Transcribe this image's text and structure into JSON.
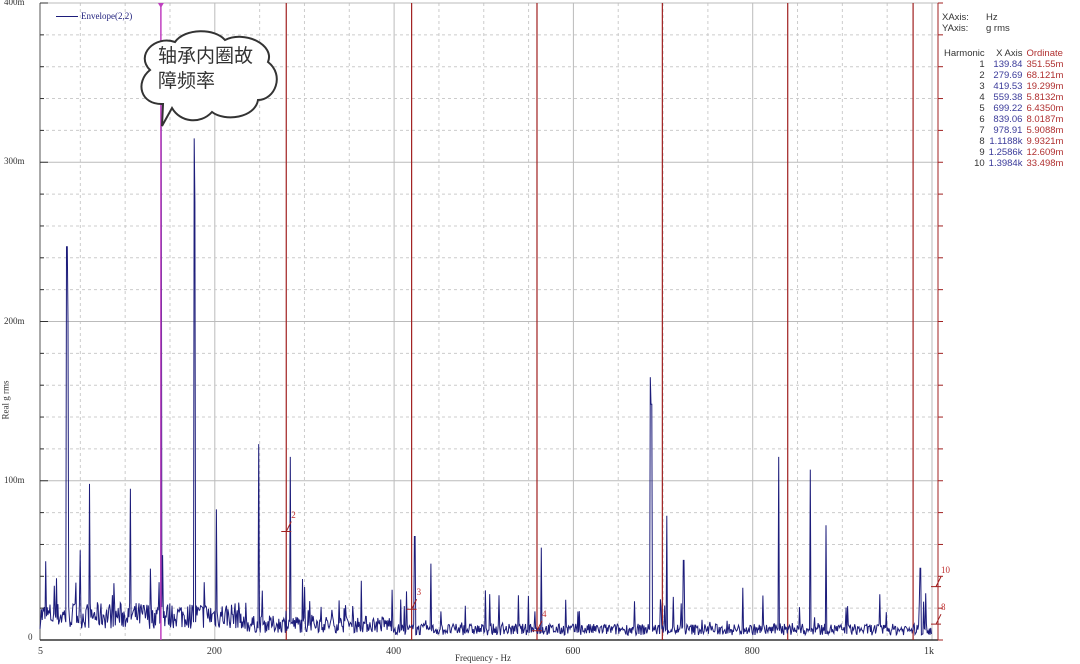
{
  "chart_data": {
    "type": "line",
    "title": "",
    "legend": [
      "Envelope(2,2)"
    ],
    "legend_placement": "top-left",
    "xlabel": "Frequency - Hz",
    "ylabel": "Real g rms",
    "xlim": [
      5,
      1000
    ],
    "ylim": [
      0,
      400
    ],
    "x_ticks": [
      {
        "v": 5,
        "label": "5"
      },
      {
        "v": 200,
        "label": "200"
      },
      {
        "v": 400,
        "label": "400"
      },
      {
        "v": 600,
        "label": "600"
      },
      {
        "v": 800,
        "label": "800"
      },
      {
        "v": 1000,
        "label": "1k"
      }
    ],
    "y_ticks": [
      {
        "v": 0,
        "label": "0"
      },
      {
        "v": 100,
        "label": "100m"
      },
      {
        "v": 200,
        "label": "200m"
      },
      {
        "v": 300,
        "label": "300m"
      },
      {
        "v": 400,
        "label": "400m"
      }
    ],
    "grid": true,
    "colors": {
      "series": "#1c1c7a",
      "cursor": "#c040c0",
      "harmonic": "#a02020",
      "axis": "#555555"
    },
    "major_peaks": [
      [
        35,
        247
      ],
      [
        36,
        200
      ],
      [
        60,
        98
      ],
      [
        106,
        95
      ],
      [
        140,
        352
      ],
      [
        177,
        315
      ],
      [
        178,
        275
      ],
      [
        202,
        82
      ],
      [
        249,
        123
      ],
      [
        284,
        115
      ],
      [
        423,
        65
      ],
      [
        441,
        48
      ],
      [
        564,
        58
      ],
      [
        686,
        165
      ],
      [
        687,
        148
      ],
      [
        704,
        78
      ],
      [
        723,
        50
      ],
      [
        829,
        115
      ],
      [
        864,
        107
      ],
      [
        882,
        72
      ],
      [
        987,
        45
      ]
    ],
    "cursor_frequency": 139.84,
    "harmonic_markers_in_view": [
      {
        "n": "2",
        "x": 279.69,
        "y": 68.121
      },
      {
        "n": "3",
        "x": 419.53,
        "y": 19.299
      },
      {
        "n": "4",
        "x": 559.38,
        "y": 5.8132
      },
      {
        "n": "10",
        "x": 1000,
        "y": 33.498
      },
      {
        "n": "8",
        "x": 1000,
        "y": 9.9321
      }
    ]
  },
  "callout": {
    "line1": "轴承内圈故",
    "line2": "障频率"
  },
  "info": {
    "xaxis_label": "XAxis:",
    "xaxis_unit": "Hz",
    "yaxis_label": "YAxis:",
    "yaxis_unit": "g rms",
    "headers": [
      "Harmonic",
      "X Axis",
      "Ordinate"
    ],
    "rows": [
      [
        "1",
        "139.84",
        "351.55m"
      ],
      [
        "2",
        "279.69",
        "68.121m"
      ],
      [
        "3",
        "419.53",
        "19.299m"
      ],
      [
        "4",
        "559.38",
        "5.8132m"
      ],
      [
        "5",
        "699.22",
        "6.4350m"
      ],
      [
        "6",
        "839.06",
        "8.0187m"
      ],
      [
        "7",
        "978.91",
        "5.9088m"
      ],
      [
        "8",
        "1.1188k",
        "9.9321m"
      ],
      [
        "9",
        "1.2586k",
        "12.609m"
      ],
      [
        "10",
        "1.3984k",
        "33.498m"
      ]
    ]
  }
}
